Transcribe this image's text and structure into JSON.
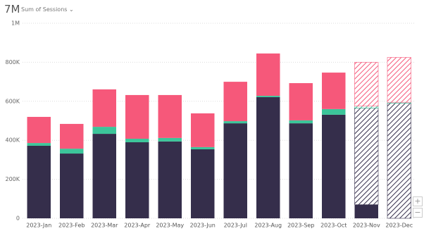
{
  "header": {
    "total": "7M",
    "measure": "Sum of Sessions"
  },
  "chart_data": {
    "type": "bar",
    "stacked": true,
    "categories": [
      "2023-Jan",
      "2023-Feb",
      "2023-Mar",
      "2023-Apr",
      "2023-May",
      "2023-Jun",
      "2023-Jul",
      "2023-Aug",
      "2023-Sep",
      "2023-Oct",
      "2023-Nov",
      "2023-Dec"
    ],
    "series": [
      {
        "color": "#352e4b",
        "hatched": false,
        "values": [
          372000,
          332000,
          433000,
          390000,
          394000,
          354000,
          487000,
          621000,
          487000,
          531000,
          70000,
          null
        ]
      },
      {
        "color": "#352e4b",
        "hatched": true,
        "values": [
          null,
          null,
          null,
          null,
          null,
          null,
          null,
          null,
          null,
          null,
          495000,
          590000
        ]
      },
      {
        "color": "#3cc59a",
        "hatched": false,
        "values": [
          14000,
          25000,
          36000,
          18000,
          18000,
          11000,
          11000,
          7000,
          15000,
          29000,
          null,
          null
        ]
      },
      {
        "color": "#3cc59a",
        "hatched": true,
        "values": [
          null,
          null,
          null,
          null,
          null,
          null,
          null,
          null,
          null,
          null,
          10000,
          5000
        ]
      },
      {
        "color": "#f6587a",
        "hatched": false,
        "values": [
          134000,
          127000,
          192000,
          224000,
          220000,
          173000,
          202000,
          217000,
          191000,
          187000,
          null,
          null
        ]
      },
      {
        "color": "#f6587a",
        "hatched": true,
        "values": [
          null,
          null,
          null,
          null,
          null,
          null,
          null,
          null,
          null,
          null,
          225000,
          230000
        ]
      }
    ],
    "ylim": [
      0,
      1000000
    ],
    "yticks": [
      0,
      {
        "value": 200000,
        "label": "200K"
      },
      {
        "value": 400000,
        "label": "400K"
      },
      {
        "value": 600000,
        "label": "600K"
      },
      {
        "value": 800000,
        "label": "800K"
      },
      {
        "value": 1000000,
        "label": "1M"
      }
    ],
    "grid": true
  }
}
